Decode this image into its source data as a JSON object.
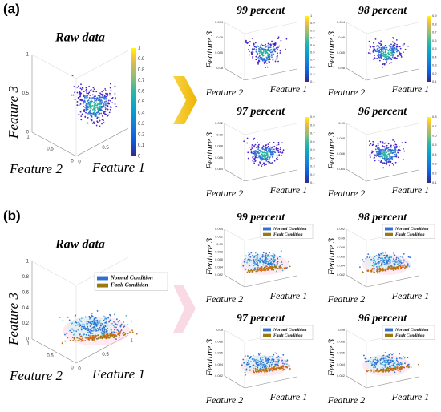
{
  "panels": [
    {
      "label": "(a)",
      "raw": {
        "title": "Raw data",
        "zlabel": "Feature 3",
        "xlabel": "Feature 1",
        "ylabel": "Feature 2",
        "zticks": [
          "0",
          "0.5",
          "1"
        ],
        "xticks": [
          "0",
          "0.5",
          "1"
        ],
        "yticks": [
          "1",
          "0.5",
          "0"
        ],
        "colorbar": [
          "0",
          "0.1",
          "0.2",
          "0.3",
          "0.4",
          "0.5",
          "0.6",
          "0.7",
          "0.8",
          "0.9",
          "1"
        ]
      },
      "subplots": [
        {
          "title": "99 percent",
          "zlabel": "Feature 3",
          "xlabel": "Feature 1",
          "ylabel": "Feature 2",
          "zticks": [
            "0.08",
            "0.085",
            "0.09",
            "0.094"
          ],
          "colorbar": [
            "0.1",
            "0.2",
            "0.3",
            "0.4",
            "0.5",
            "0.6",
            "0.7",
            "0.8",
            "0.9",
            "1"
          ]
        },
        {
          "title": "98 percent",
          "zlabel": "Feature 3",
          "xlabel": "Feature 1",
          "ylabel": "Feature 2",
          "zticks": [
            "0.08",
            "0.085",
            "0.09",
            "0.094"
          ],
          "colorbar": [
            "0.1",
            "0.2",
            "0.3",
            "0.4",
            "0.5",
            "0.6",
            "0.7",
            "0.8",
            "0.9"
          ]
        },
        {
          "title": "97 percent",
          "zlabel": "Feature 3",
          "xlabel": "Feature 1",
          "ylabel": "Feature 2",
          "zticks": [
            "0.084",
            "0.086",
            "0.088",
            "0.09",
            "0.092"
          ],
          "colorbar": [
            "0.1",
            "0.2",
            "0.3",
            "0.4",
            "0.5",
            "0.6",
            "0.7",
            "0.8",
            "0.9"
          ]
        },
        {
          "title": "96 percent",
          "zlabel": "Feature 3",
          "xlabel": "Feature 1",
          "ylabel": "Feature 2",
          "zticks": [
            "0.084",
            "0.086",
            "0.088",
            "0.09"
          ],
          "colorbar": [
            "0.1",
            "0.2",
            "0.3",
            "0.4",
            "0.5",
            "0.6",
            "0.7",
            "0.8"
          ]
        }
      ]
    },
    {
      "label": "(b)",
      "raw": {
        "title": "Raw data",
        "zlabel": "Feature 3",
        "xlabel": "Feature 1",
        "ylabel": "Feature 2",
        "zticks": [
          "0",
          "0.2",
          "0.4",
          "0.6",
          "0.8",
          "1"
        ],
        "xticks": [
          "0",
          "0.5",
          "1"
        ],
        "yticks": [
          "1",
          "0.5",
          "0"
        ],
        "legend": [
          "Normal Condition",
          "Fault Condition"
        ]
      },
      "subplots": [
        {
          "title": "99 percent",
          "zlabel": "Feature 3",
          "xlabel": "Feature 1",
          "ylabel": "Feature 2",
          "zticks": [
            "0.082",
            "0.084",
            "0.086",
            "0.088",
            "0.09",
            "0.092",
            "0.094"
          ],
          "legend": [
            "Normal Condition",
            "Fault Condition"
          ]
        },
        {
          "title": "98 percent",
          "zlabel": "Feature 3",
          "xlabel": "Feature 1",
          "ylabel": "Feature 2",
          "zticks": [
            "0.082",
            "0.084",
            "0.086",
            "0.088",
            "0.09",
            "0.092"
          ],
          "legend": [
            "Normal Condition",
            "Fault Condition"
          ]
        },
        {
          "title": "97 percent",
          "zlabel": "Feature 3",
          "xlabel": "Feature 1",
          "ylabel": "Feature 2",
          "zticks": [
            "0.082",
            "0.084",
            "0.086",
            "0.088",
            "0.09"
          ],
          "legend": [
            "Normal Condition",
            "Fault Condition"
          ]
        },
        {
          "title": "96 percent",
          "zlabel": "Feature 3",
          "xlabel": "Feature 1",
          "ylabel": "Feature 2",
          "zticks": [
            "0.082",
            "0.084",
            "0.086",
            "0.088",
            "0.09"
          ],
          "legend": [
            "Normal Condition",
            "Fault Condition"
          ]
        }
      ]
    }
  ]
}
